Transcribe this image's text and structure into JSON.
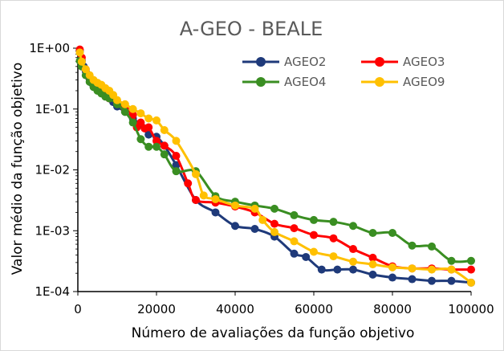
{
  "chart_data": {
    "type": "line",
    "title": "A-GEO - BEALE",
    "xlabel": "Número de avaliações da função objetivo",
    "ylabel": "Valor médio da função objetivo",
    "x_scale": "linear",
    "y_scale": "log",
    "xlim": [
      0,
      100000
    ],
    "ylim": [
      0.0001,
      1
    ],
    "x_ticks": [
      0,
      20000,
      40000,
      60000,
      80000,
      100000
    ],
    "x_tick_labels": [
      "0",
      "20000",
      "40000",
      "60000",
      "80000",
      "100000"
    ],
    "y_ticks": [
      1,
      0.1,
      0.01,
      0.001,
      0.0001
    ],
    "y_tick_labels": [
      "1E+00",
      "1E-01",
      "1E-02",
      "1E-03",
      "1E-04"
    ],
    "grid": false,
    "legend_position": "top-right",
    "series": [
      {
        "name": "AGEO2",
        "color": "#1F3A7A",
        "points": [
          [
            500,
            0.9
          ],
          [
            1000,
            0.62
          ],
          [
            1500,
            0.5
          ],
          [
            2000,
            0.42
          ],
          [
            2500,
            0.36
          ],
          [
            3000,
            0.31
          ],
          [
            3500,
            0.27
          ],
          [
            4000,
            0.24
          ],
          [
            5000,
            0.21
          ],
          [
            6000,
            0.19
          ],
          [
            7000,
            0.17
          ],
          [
            8000,
            0.15
          ],
          [
            9000,
            0.13
          ],
          [
            10000,
            0.11
          ],
          [
            12000,
            0.09
          ],
          [
            14000,
            0.07
          ],
          [
            16000,
            0.055
          ],
          [
            18000,
            0.038
          ],
          [
            20000,
            0.035
          ],
          [
            22000,
            0.025
          ],
          [
            25000,
            0.012
          ],
          [
            30000,
            0.0032
          ],
          [
            35000,
            0.002
          ],
          [
            40000,
            0.0012
          ],
          [
            45000,
            0.00107
          ],
          [
            50000,
            0.0008
          ],
          [
            55000,
            0.00042
          ],
          [
            58000,
            0.00037
          ],
          [
            62000,
            0.00023
          ],
          [
            66000,
            0.00023
          ],
          [
            70000,
            0.00023
          ],
          [
            75000,
            0.00019
          ],
          [
            80000,
            0.00017
          ],
          [
            85000,
            0.00016
          ],
          [
            90000,
            0.00015
          ],
          [
            95000,
            0.00015
          ],
          [
            100000,
            0.00014
          ]
        ]
      },
      {
        "name": "AGEO3",
        "color": "#FF0000",
        "points": [
          [
            500,
            0.95
          ],
          [
            1000,
            0.7
          ],
          [
            2000,
            0.45
          ],
          [
            3000,
            0.33
          ],
          [
            4000,
            0.27
          ],
          [
            5000,
            0.23
          ],
          [
            6000,
            0.2
          ],
          [
            7000,
            0.17
          ],
          [
            8000,
            0.15
          ],
          [
            10000,
            0.13
          ],
          [
            12000,
            0.1
          ],
          [
            14000,
            0.08
          ],
          [
            15000,
            0.05
          ],
          [
            16000,
            0.06
          ],
          [
            17000,
            0.048
          ],
          [
            18000,
            0.05
          ],
          [
            20000,
            0.03
          ],
          [
            22000,
            0.025
          ],
          [
            25000,
            0.017
          ],
          [
            28000,
            0.006
          ],
          [
            30000,
            0.0032
          ],
          [
            35000,
            0.0029
          ],
          [
            40000,
            0.0025
          ],
          [
            45000,
            0.002
          ],
          [
            50000,
            0.0013
          ],
          [
            55000,
            0.0011
          ],
          [
            60000,
            0.00085
          ],
          [
            65000,
            0.00075
          ],
          [
            70000,
            0.0005
          ],
          [
            75000,
            0.00036
          ],
          [
            80000,
            0.00026
          ],
          [
            85000,
            0.00024
          ],
          [
            90000,
            0.00024
          ],
          [
            95000,
            0.00023
          ],
          [
            100000,
            0.00023
          ]
        ]
      },
      {
        "name": "AGEO4",
        "color": "#3A8E22",
        "points": [
          [
            500,
            0.62
          ],
          [
            1000,
            0.5
          ],
          [
            2000,
            0.36
          ],
          [
            3000,
            0.28
          ],
          [
            4000,
            0.23
          ],
          [
            5000,
            0.2
          ],
          [
            6000,
            0.18
          ],
          [
            7000,
            0.16
          ],
          [
            8000,
            0.15
          ],
          [
            10000,
            0.12
          ],
          [
            12000,
            0.09
          ],
          [
            14000,
            0.06
          ],
          [
            16000,
            0.032
          ],
          [
            18000,
            0.024
          ],
          [
            20000,
            0.024
          ],
          [
            22000,
            0.018
          ],
          [
            25000,
            0.0095
          ],
          [
            30000,
            0.0095
          ],
          [
            35000,
            0.0037
          ],
          [
            40000,
            0.003
          ],
          [
            45000,
            0.0026
          ],
          [
            50000,
            0.0023
          ],
          [
            55000,
            0.0018
          ],
          [
            60000,
            0.0015
          ],
          [
            65000,
            0.0014
          ],
          [
            70000,
            0.0012
          ],
          [
            75000,
            0.00092
          ],
          [
            80000,
            0.00092
          ],
          [
            85000,
            0.00057
          ],
          [
            90000,
            0.00055
          ],
          [
            95000,
            0.00032
          ],
          [
            100000,
            0.00032
          ]
        ]
      },
      {
        "name": "AGEO9",
        "color": "#FFC000",
        "points": [
          [
            500,
            0.85
          ],
          [
            1000,
            0.6
          ],
          [
            2000,
            0.45
          ],
          [
            3000,
            0.36
          ],
          [
            4000,
            0.3
          ],
          [
            5000,
            0.27
          ],
          [
            6000,
            0.25
          ],
          [
            7000,
            0.22
          ],
          [
            8000,
            0.2
          ],
          [
            9000,
            0.17
          ],
          [
            10000,
            0.14
          ],
          [
            12000,
            0.12
          ],
          [
            14000,
            0.1
          ],
          [
            16000,
            0.085
          ],
          [
            18000,
            0.07
          ],
          [
            20000,
            0.065
          ],
          [
            22000,
            0.045
          ],
          [
            25000,
            0.03
          ],
          [
            30000,
            0.0085
          ],
          [
            32000,
            0.0038
          ],
          [
            35000,
            0.0033
          ],
          [
            40000,
            0.0026
          ],
          [
            45000,
            0.0023
          ],
          [
            47000,
            0.0015
          ],
          [
            50000,
            0.00095
          ],
          [
            55000,
            0.00067
          ],
          [
            60000,
            0.00045
          ],
          [
            65000,
            0.00038
          ],
          [
            70000,
            0.00031
          ],
          [
            75000,
            0.00028
          ],
          [
            80000,
            0.00025
          ],
          [
            85000,
            0.00024
          ],
          [
            90000,
            0.00023
          ],
          [
            95000,
            0.00023
          ],
          [
            100000,
            0.00014
          ]
        ]
      }
    ]
  }
}
